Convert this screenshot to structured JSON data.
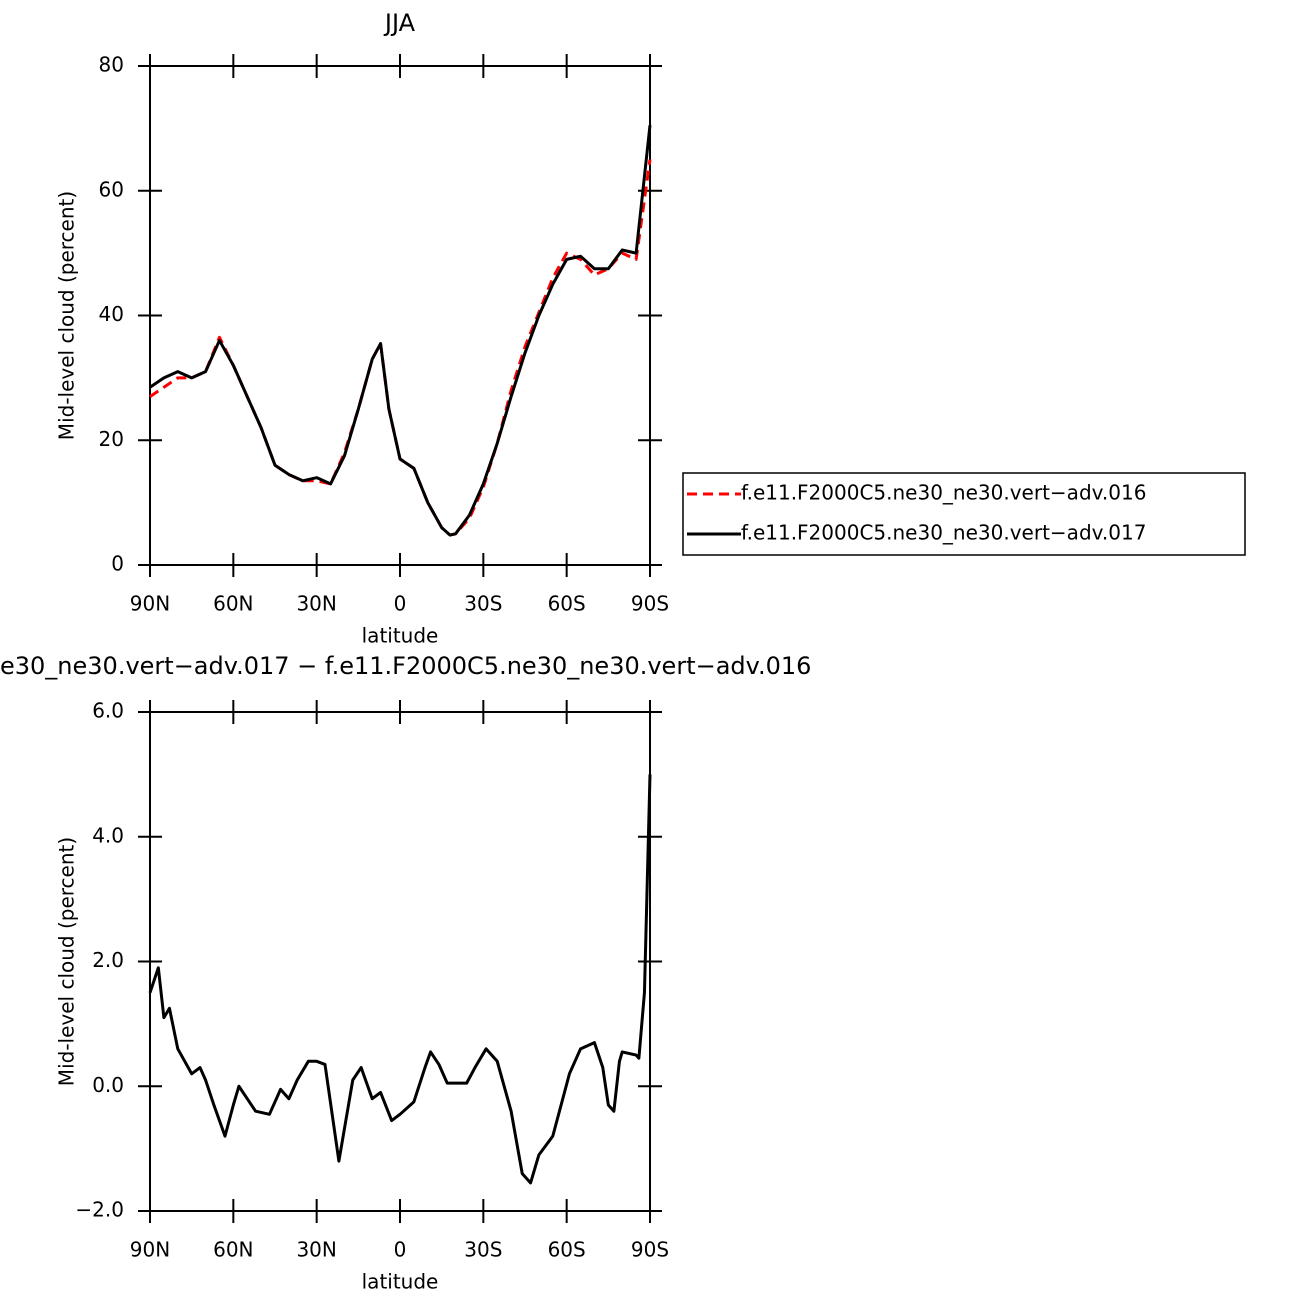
{
  "chart_data": [
    {
      "type": "line",
      "title": "JJA",
      "xlabel": "latitude",
      "ylabel": "Mid-level cloud (percent)",
      "x": [
        90,
        85,
        80,
        75,
        70,
        65,
        60,
        55,
        50,
        45,
        40,
        35,
        30,
        25,
        20,
        15,
        10,
        7,
        4,
        0,
        -5,
        -10,
        -15,
        -18,
        -20,
        -25,
        -30,
        -35,
        -40,
        -45,
        -50,
        -55,
        -60,
        -65,
        -70,
        -75,
        -80,
        -85,
        -90
      ],
      "series": [
        {
          "name": "f.e11.F2000C5.ne30_ne30.vert−adv.016",
          "color": "#ff0000",
          "dash": true,
          "values": [
            27,
            28.5,
            30,
            30,
            31,
            36.5,
            32,
            27,
            22,
            16,
            14.5,
            13.5,
            13.5,
            13,
            18,
            25,
            33,
            35.5,
            25,
            17,
            15.5,
            10,
            6,
            4.8,
            5,
            7.5,
            12.5,
            19.5,
            28,
            35,
            40.5,
            46,
            50,
            49,
            46.5,
            47.5,
            50,
            49,
            65
          ]
        },
        {
          "name": "f.e11.F2000C5.ne30_ne30.vert−adv.017",
          "color": "#000000",
          "dash": false,
          "values": [
            28.5,
            30,
            31,
            30,
            31,
            36,
            32,
            27,
            22,
            16,
            14.5,
            13.5,
            14,
            13,
            17.5,
            25,
            33,
            35.5,
            25,
            17,
            15.5,
            10,
            6,
            4.8,
            5,
            8,
            13,
            19.5,
            27,
            34,
            40,
            45,
            49,
            49.5,
            47.5,
            47.5,
            50.5,
            50,
            70.5
          ]
        }
      ],
      "xlim": [
        90,
        -90
      ],
      "xticks": [
        {
          "value": 90,
          "label": "90N"
        },
        {
          "value": 60,
          "label": "60N"
        },
        {
          "value": 30,
          "label": "30N"
        },
        0,
        {
          "value": -30,
          "label": "30S"
        },
        {
          "value": -60,
          "label": "60S"
        },
        {
          "value": -90,
          "label": "90S"
        }
      ],
      "ylim": [
        0,
        80
      ],
      "yticks": [
        0,
        20,
        40,
        60,
        80
      ],
      "legend": "right"
    },
    {
      "type": "line",
      "title": "e30_ne30.vert−adv.017 − f.e11.F2000C5.ne30_ne30.vert−adv.016",
      "xlabel": "latitude",
      "ylabel": "Mid-level cloud (percent)",
      "x": [
        90,
        87,
        85,
        83,
        80,
        75,
        72,
        70,
        67,
        63,
        60,
        58,
        55,
        52,
        47,
        43,
        40,
        37,
        33,
        30,
        27,
        22,
        17,
        14,
        10,
        7,
        3,
        0,
        -5,
        -9,
        -11,
        -14,
        -17,
        -20,
        -24,
        -27,
        -31,
        -35,
        -40,
        -44,
        -47,
        -50,
        -55,
        -58,
        -61,
        -65,
        -70,
        -73,
        -75,
        -77,
        -79,
        -80,
        -85,
        -86,
        -88,
        -90
      ],
      "series": [
        {
          "color": "#000000",
          "dash": false,
          "values": [
            1.5,
            1.9,
            1.1,
            1.25,
            0.6,
            0.2,
            0.3,
            0.1,
            -0.3,
            -0.8,
            -0.3,
            0,
            -0.2,
            -0.4,
            -0.45,
            -0.05,
            -0.2,
            0.1,
            0.4,
            0.4,
            0.35,
            -1.2,
            0.1,
            0.3,
            -0.2,
            -0.1,
            -0.55,
            -0.45,
            -0.25,
            0.3,
            0.55,
            0.35,
            0.05,
            0.05,
            0.05,
            0.3,
            0.6,
            0.4,
            -0.4,
            -1.4,
            -1.55,
            -1.1,
            -0.8,
            -0.3,
            0.2,
            0.6,
            0.7,
            0.3,
            -0.3,
            -0.4,
            0.4,
            0.55,
            0.5,
            0.45,
            1.5,
            5.0
          ]
        }
      ],
      "xlim": [
        90,
        -90
      ],
      "xticks": [
        {
          "value": 90,
          "label": "90N"
        },
        {
          "value": 60,
          "label": "60N"
        },
        {
          "value": 30,
          "label": "30N"
        },
        0,
        {
          "value": -30,
          "label": "30S"
        },
        {
          "value": -60,
          "label": "60S"
        },
        {
          "value": -90,
          "label": "90S"
        }
      ],
      "ylim": [
        -2,
        6
      ],
      "yticks": [
        {
          "value": -2,
          "label": "−2.0"
        },
        {
          "value": 0,
          "label": "0.0"
        },
        {
          "value": 2,
          "label": "2.0"
        },
        {
          "value": 4,
          "label": "4.0"
        },
        {
          "value": 6,
          "label": "6.0"
        }
      ]
    }
  ]
}
